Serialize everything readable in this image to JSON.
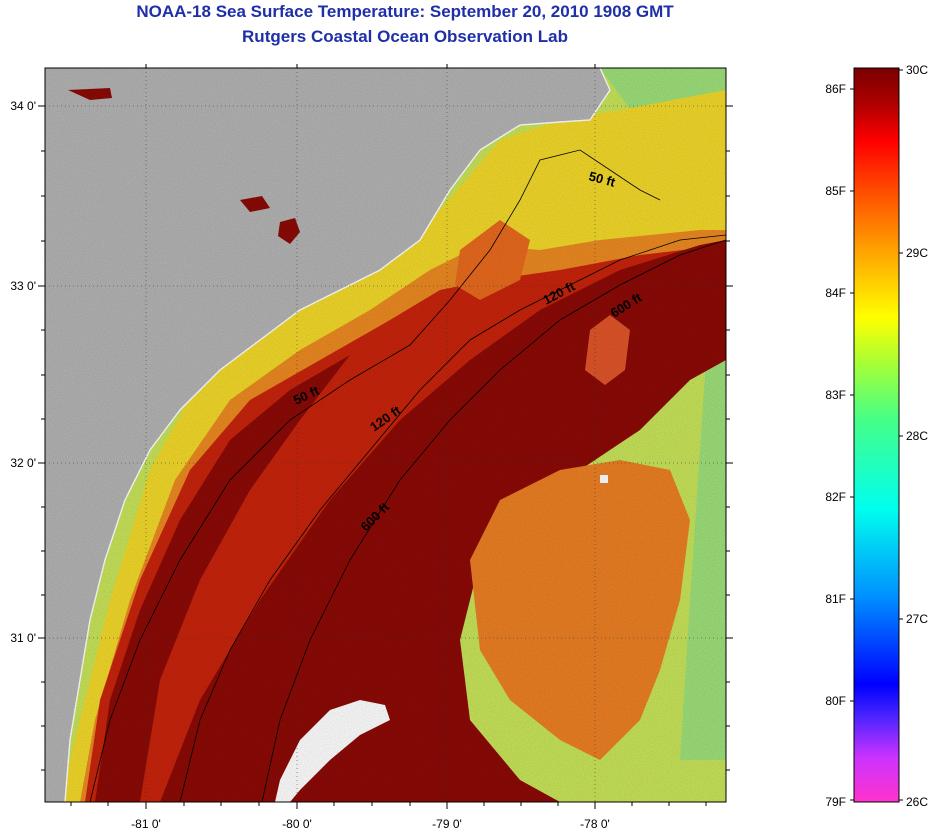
{
  "title": "NOAA-18 Sea Surface Temperature:  September 20, 2010 1908 GMT",
  "subtitle": "Rutgers Coastal Ocean Observation Lab",
  "map": {
    "lat_labels": [
      "34 0'",
      "33 0'",
      "32 0'",
      "31 0'"
    ],
    "lon_labels": [
      "-81 0'",
      "-80 0'",
      "-79 0'",
      "-78 0'"
    ],
    "contours": [
      "50 ft",
      "120 ft",
      "600 ft",
      "50 ft",
      "120 ft",
      "600 ft"
    ],
    "colors": {
      "land": "#b4b4b4",
      "cloud": "#ffffff",
      "warm": "#8c0a06",
      "hot": "#c81e0a",
      "orange": "#f07a1e",
      "yellow": "#f5e01e",
      "green": "#a8e85a"
    }
  },
  "colorbar": {
    "f_labels": [
      "86F",
      "85F",
      "84F",
      "83F",
      "82F",
      "81F",
      "80F",
      "79F"
    ],
    "c_labels": [
      "30C",
      "29C",
      "28C",
      "27C",
      "26C"
    ],
    "range_f": [
      79,
      86.5
    ],
    "range_c": [
      26,
      30
    ]
  }
}
